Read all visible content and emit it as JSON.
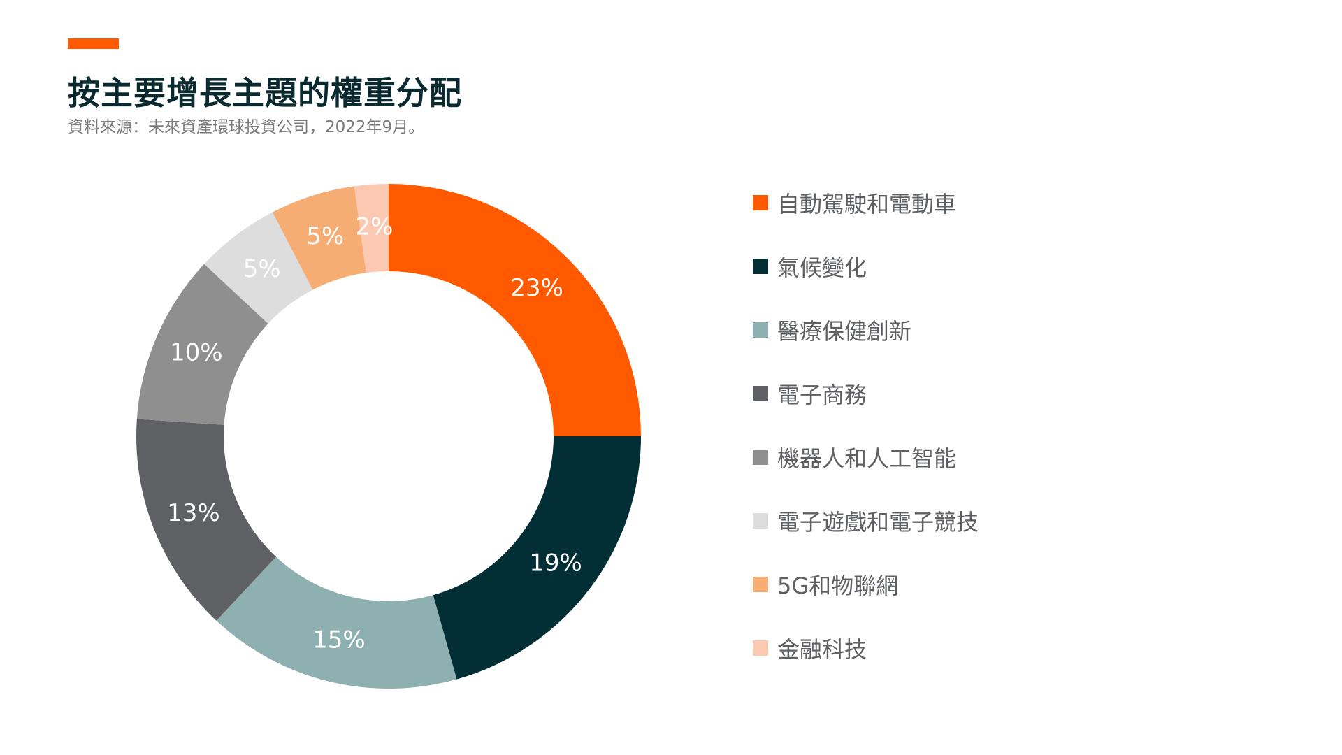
{
  "header": {
    "title": "按主要增長主題的權重分配",
    "subtitle": "資料來源：未來資產環球投資公司，2022年9月。"
  },
  "colors": {
    "accent": "#ff5a00",
    "title": "#0a2a30",
    "legend_text": "#5d5f63"
  },
  "chart_data": {
    "type": "pie",
    "style": "donut",
    "title": "按主要增長主題的權重分配",
    "legend_position": "right",
    "unit": "%",
    "categories": [
      "自動駕駛和電動車",
      "氣候變化",
      "醫療保健創新",
      "電子商務",
      "機器人和人工智能",
      "電子遊戲和電子競技",
      "5G和物聯網",
      "金融科技"
    ],
    "values": [
      23,
      19,
      15,
      13,
      10,
      5,
      5,
      2
    ],
    "labels": [
      "23%",
      "19%",
      "15%",
      "13%",
      "10%",
      "5%",
      "5%",
      "2%"
    ],
    "colors": [
      "#ff5a00",
      "#022f35",
      "#8eb0b0",
      "#5f6063",
      "#8f8f8f",
      "#dcdddc",
      "#f6ad74",
      "#fbc8b1"
    ],
    "label_colors": [
      "#ffffff",
      "#ffffff",
      "#ffffff",
      "#ffffff",
      "#ffffff",
      "#ffffff",
      "#ffffff",
      "#ffffff"
    ]
  }
}
